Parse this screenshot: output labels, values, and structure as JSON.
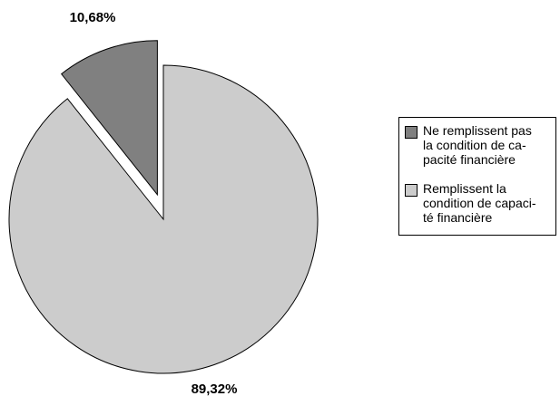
{
  "chart_data": {
    "type": "pie",
    "title": "",
    "slices": [
      {
        "name": "Ne remplissent pas la condition de capacité financière",
        "value": 10.68,
        "label": "10,68%",
        "color": "#808080",
        "exploded": true
      },
      {
        "name": "Remplissent la condition de capacité financière",
        "value": 89.32,
        "label": "89,32%",
        "color": "#cccccc",
        "exploded": false
      }
    ],
    "legend_position": "right"
  },
  "legend": {
    "items": [
      {
        "lines": [
          "Ne remplissent pas",
          "la condition de ca-",
          "pacité financière"
        ],
        "color": "#808080"
      },
      {
        "lines": [
          "Remplissent la",
          "condition de capaci-",
          "té financière"
        ],
        "color": "#cccccc"
      }
    ]
  }
}
